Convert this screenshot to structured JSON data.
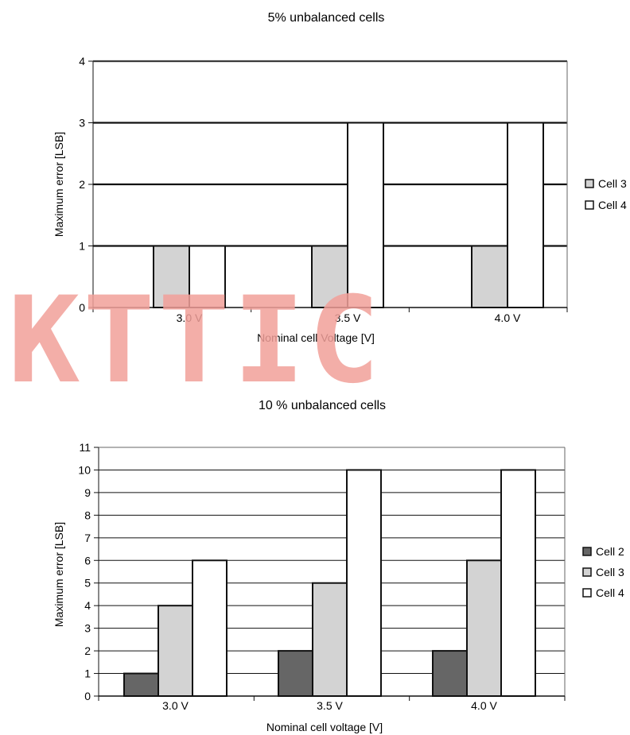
{
  "chart_data": [
    {
      "type": "bar",
      "title": "5% unbalanced cells",
      "xlabel": "Nominal cell Voltage [V]",
      "ylabel": "Maximum error [LSB]",
      "categories": [
        "3.0 V",
        "3.5 V",
        "4.0 V"
      ],
      "ylim": [
        0,
        4
      ],
      "yticks": [
        "0",
        "1",
        "2",
        "3",
        "4"
      ],
      "grid": true,
      "legend_position": "right",
      "series": [
        {
          "name": "Cell 3",
          "values": [
            1,
            1,
            1
          ],
          "color": "#d3d3d3"
        },
        {
          "name": "Cell 4",
          "values": [
            1,
            3,
            3
          ],
          "color": "#ffffff"
        }
      ]
    },
    {
      "type": "bar",
      "title": "10 % unbalanced cells",
      "xlabel": "Nominal cell voltage [V]",
      "ylabel": "Maximum error [LSB]",
      "categories": [
        "3.0 V",
        "3.5 V",
        "4.0 V"
      ],
      "ylim": [
        0,
        11
      ],
      "yticks": [
        "0",
        "1",
        "2",
        "3",
        "4",
        "5",
        "6",
        "7",
        "8",
        "9",
        "10",
        "11"
      ],
      "grid": true,
      "legend_position": "right",
      "series": [
        {
          "name": "Cell 2",
          "values": [
            1,
            2,
            2
          ],
          "color": "#666666"
        },
        {
          "name": "Cell 3",
          "values": [
            4,
            5,
            6
          ],
          "color": "#d3d3d3"
        },
        {
          "name": "Cell 4",
          "values": [
            6,
            10,
            10
          ],
          "color": "#ffffff"
        }
      ]
    }
  ],
  "watermark": {
    "text": "KTTIC",
    "color": "#f2a09a"
  }
}
